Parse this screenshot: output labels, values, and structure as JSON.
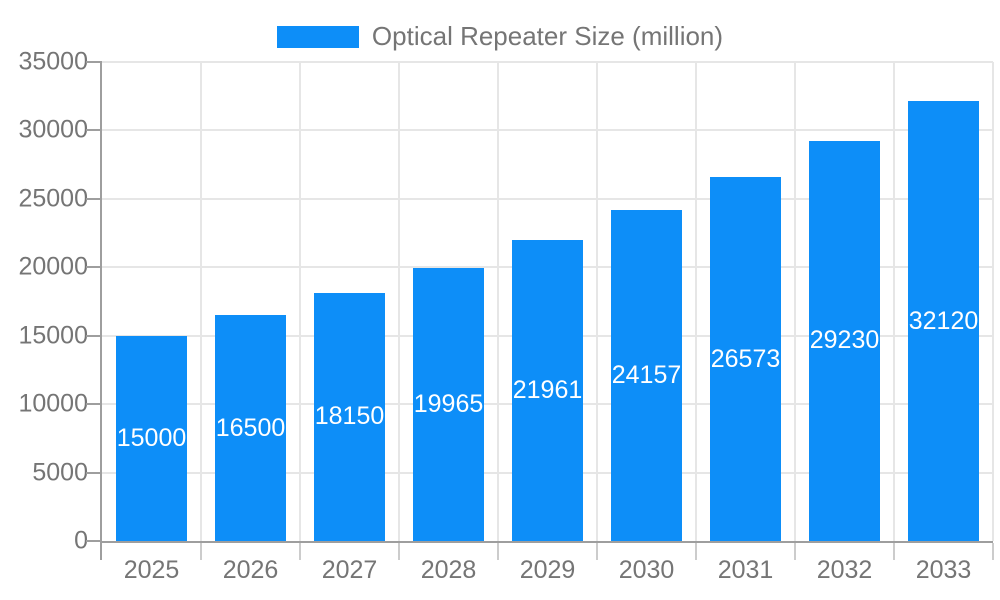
{
  "chart_data": {
    "type": "bar",
    "legend": {
      "position": "top",
      "label": "Optical Repeater Size (million)"
    },
    "categories": [
      "2025",
      "2026",
      "2027",
      "2028",
      "2029",
      "2030",
      "2031",
      "2032",
      "2033"
    ],
    "series": [
      {
        "name": "Optical Repeater Size (million)",
        "values": [
          15000,
          16500,
          18150,
          19965,
          21961,
          24157,
          26573,
          29230,
          32120
        ]
      }
    ],
    "xlabel": "",
    "ylabel": "",
    "ylim": [
      0,
      35000
    ],
    "y_ticks": [
      0,
      5000,
      10000,
      15000,
      20000,
      25000,
      30000,
      35000
    ],
    "grid": true,
    "value_labels": "inside-center"
  },
  "colors": {
    "bar_fill": "#0d8ef8",
    "bar_value_text": "#ffffff",
    "axis_line": "#9e9e9e",
    "axis_tick_text": "#757575",
    "legend_text": "#757575",
    "gridline": "#e6e6e6",
    "tick_mark": "#cccccc",
    "background": "#ffffff"
  }
}
